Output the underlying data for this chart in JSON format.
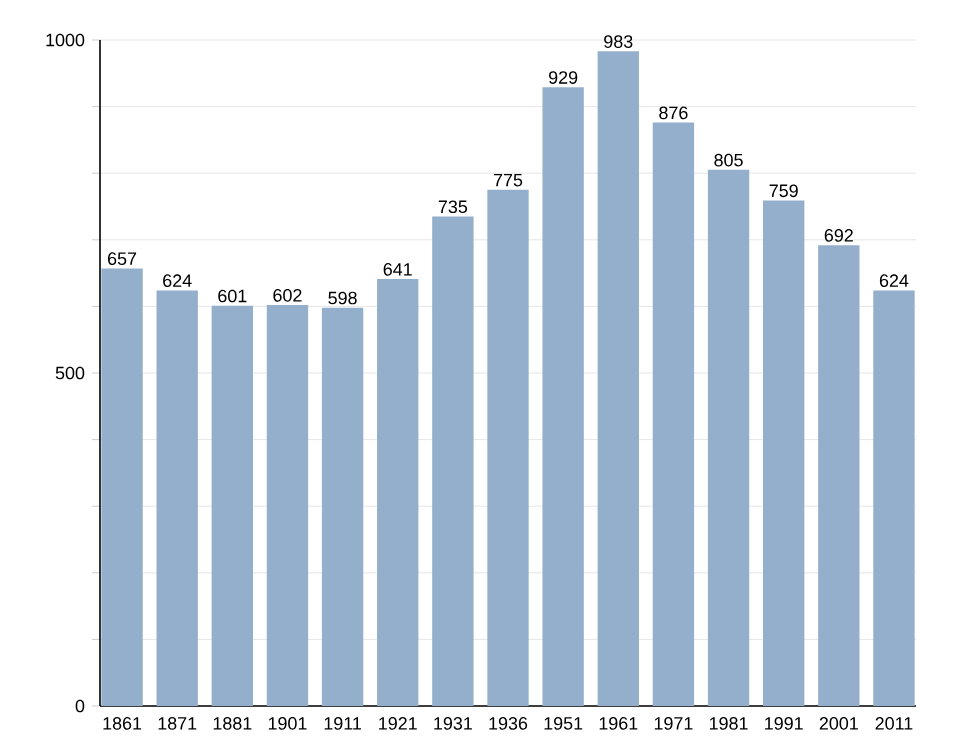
{
  "chart_data": {
    "type": "bar",
    "categories": [
      "1861",
      "1871",
      "1881",
      "1901",
      "1911",
      "1921",
      "1931",
      "1936",
      "1951",
      "1961",
      "1971",
      "1981",
      "1991",
      "2001",
      "2011"
    ],
    "values": [
      657,
      624,
      601,
      602,
      598,
      641,
      735,
      775,
      929,
      983,
      876,
      805,
      759,
      692,
      624
    ],
    "color": "#94afcc",
    "ylim": [
      0,
      1000
    ],
    "yticks": [
      0,
      {
        "value": 100,
        "label": null
      },
      {
        "value": 200,
        "label": null
      },
      {
        "value": 300,
        "label": null
      },
      {
        "value": 400,
        "label": null
      },
      500,
      {
        "value": 600,
        "label": null
      },
      {
        "value": 700,
        "label": null
      },
      {
        "value": 800,
        "label": null
      },
      {
        "value": 900,
        "label": null
      },
      1000
    ],
    "grid": "y",
    "data_labels": true
  }
}
